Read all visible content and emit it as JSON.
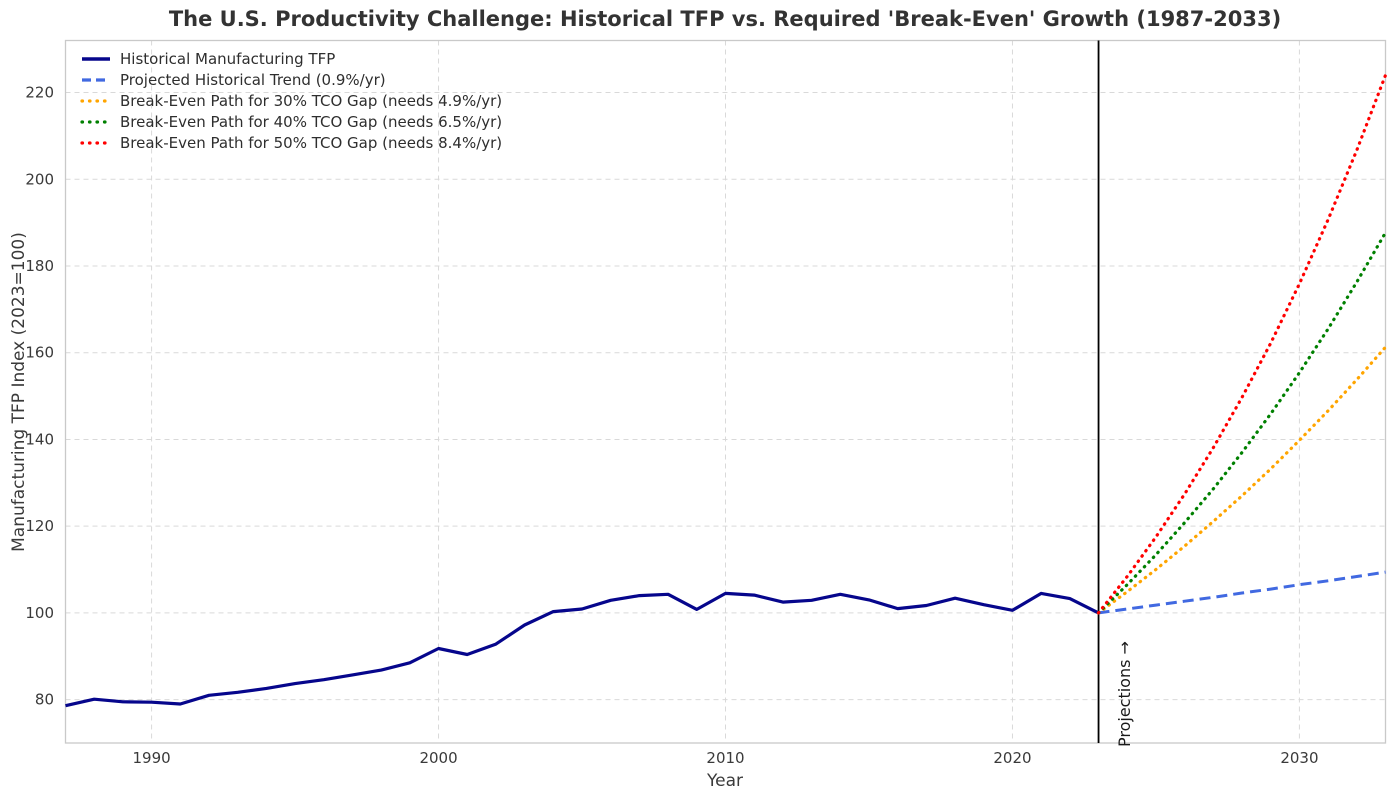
{
  "chart_data": {
    "type": "line",
    "title": "The U.S. Productivity Challenge: Historical TFP vs. Required 'Break-Even' Growth (1987-2033)",
    "xlabel": "Year",
    "ylabel": "Manufacturing TFP Index (2023=100)",
    "xlim": [
      1987,
      2033
    ],
    "ylim": [
      70,
      232
    ],
    "xticks": [
      1990,
      2000,
      2010,
      2020,
      2030
    ],
    "yticks": [
      80,
      100,
      120,
      140,
      160,
      180,
      200,
      220
    ],
    "grid": {
      "on": true,
      "linestyle": "dashed",
      "color": "#d9d9d9"
    },
    "legend_position": "upper-left",
    "marker_line": {
      "x": 2023,
      "color": "#000000"
    },
    "annotation": {
      "text": "Projections →",
      "x": 2023,
      "rotation": -90
    },
    "series": [
      {
        "name": "Historical Manufacturing TFP",
        "style": "solid",
        "color": "#06068c",
        "width": 3.2,
        "x": [
          1987,
          1988,
          1989,
          1990,
          1991,
          1992,
          1993,
          1994,
          1995,
          1996,
          1997,
          1998,
          1999,
          2000,
          2001,
          2002,
          2003,
          2004,
          2005,
          2006,
          2007,
          2008,
          2009,
          2010,
          2011,
          2012,
          2013,
          2014,
          2015,
          2016,
          2017,
          2018,
          2019,
          2020,
          2021,
          2022,
          2023
        ],
        "y": [
          78.6,
          80.1,
          79.5,
          79.4,
          79.0,
          81.0,
          81.7,
          82.6,
          83.7,
          84.6,
          85.7,
          86.8,
          88.5,
          91.8,
          90.4,
          92.8,
          97.2,
          100.3,
          100.9,
          102.9,
          104.0,
          104.3,
          100.8,
          104.5,
          104.1,
          102.5,
          102.9,
          104.3,
          103.0,
          101.0,
          101.7,
          103.4,
          101.9,
          100.6,
          104.5,
          103.3,
          100.0
        ]
      },
      {
        "name": "Projected Historical Trend (0.9%/yr)",
        "style": "dashed",
        "color": "#4169e1",
        "width": 3,
        "growth_rate_pct_per_yr": 0.9,
        "x": [
          2023,
          2024,
          2025,
          2026,
          2027,
          2028,
          2029,
          2030,
          2031,
          2032,
          2033
        ],
        "y": [
          100.0,
          100.9,
          101.8,
          102.7,
          103.6,
          104.6,
          105.5,
          106.5,
          107.4,
          108.4,
          109.4
        ]
      },
      {
        "name": "Break-Even Path for 30% TCO Gap (needs 4.9%/yr)",
        "style": "dotted",
        "color": "#ffa500",
        "width": 3.2,
        "growth_rate_pct_per_yr": 4.9,
        "x": [
          2023,
          2024,
          2025,
          2026,
          2027,
          2028,
          2029,
          2030,
          2031,
          2032,
          2033
        ],
        "y": [
          100.0,
          104.9,
          110.0,
          115.4,
          121.1,
          127.0,
          133.2,
          139.8,
          146.6,
          153.8,
          161.3
        ]
      },
      {
        "name": "Break-Even Path for 40% TCO Gap (needs 6.5%/yr)",
        "style": "dotted",
        "color": "#008000",
        "width": 3.2,
        "growth_rate_pct_per_yr": 6.5,
        "x": [
          2023,
          2024,
          2025,
          2026,
          2027,
          2028,
          2029,
          2030,
          2031,
          2032,
          2033
        ],
        "y": [
          100.0,
          106.5,
          113.4,
          120.8,
          128.6,
          137.0,
          145.9,
          155.4,
          165.5,
          176.3,
          187.7
        ]
      },
      {
        "name": "Break-Even Path for 50% TCO Gap (needs 8.4%/yr)",
        "style": "dotted",
        "color": "#ff0000",
        "width": 3.2,
        "growth_rate_pct_per_yr": 8.4,
        "x": [
          2023,
          2024,
          2025,
          2026,
          2027,
          2028,
          2029,
          2030,
          2031,
          2032,
          2033
        ],
        "y": [
          100.0,
          108.4,
          117.5,
          127.4,
          138.1,
          149.7,
          162.2,
          175.9,
          190.7,
          206.7,
          224.0
        ]
      }
    ]
  }
}
